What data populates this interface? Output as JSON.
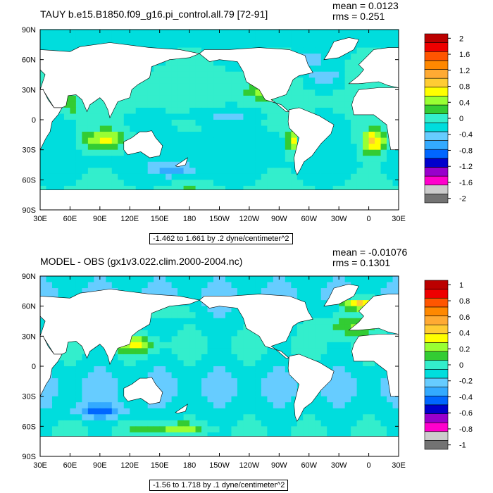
{
  "colorbar_colors": [
    "#737373",
    "#cccccc",
    "#ff00cc",
    "#9900cc",
    "#0000cc",
    "#0066ff",
    "#33aaff",
    "#66ccff",
    "#00dddd",
    "#33eecc",
    "#33cc33",
    "#99ff33",
    "#ffff00",
    "#ffcc33",
    "#ffaa33",
    "#ff8800",
    "#ff5500",
    "#ee0000",
    "#bb0000"
  ],
  "land_color": "#ffffff",
  "chart_data": [
    {
      "type": "heatmap",
      "title": "TAUY b.e15.B1850.f09_g16.pi_control.all.79 [72-91]",
      "mean_text": "mean = 0.0123",
      "rms_text": "rms = 0.251",
      "range_text": "-1.462 to 1.661 by .2 dyne/centimeter^2",
      "x_tick_labels": [
        "30E",
        "60E",
        "90E",
        "120E",
        "150E",
        "180",
        "150W",
        "120W",
        "90W",
        "60W",
        "30W",
        "0",
        "30E"
      ],
      "y_tick_labels": [
        "90N",
        "60N",
        "30N",
        "0",
        "30S",
        "60S",
        "90S"
      ],
      "colorbar_labels": [
        "2",
        "1.6",
        "1.2",
        "0.8",
        "0.4",
        "0",
        "-0.4",
        "-0.8",
        "-1.2",
        "-1.6",
        "-2"
      ],
      "value_range": [
        -1.462,
        1.661
      ],
      "contour_interval": 0.2,
      "units": "dyne/centimeter^2",
      "mean": 0.0123,
      "rms": 0.251
    },
    {
      "type": "heatmap",
      "title": "MODEL - OBS (gx1v3.022.clim.2000-2004.nc)",
      "mean_text": "mean = -0.01076",
      "rms_text": "rms = 0.1301",
      "range_text": "-1.56 to 1.718 by .1 dyne/centimeter^2",
      "x_tick_labels": [
        "30E",
        "60E",
        "90E",
        "120E",
        "150E",
        "180",
        "150W",
        "120W",
        "90W",
        "60W",
        "30W",
        "0",
        "30E"
      ],
      "y_tick_labels": [
        "90N",
        "60N",
        "30N",
        "0",
        "30S",
        "60S",
        "90S"
      ],
      "colorbar_labels": [
        "1",
        "0.8",
        "0.6",
        "0.4",
        "0.2",
        "0",
        "-0.2",
        "-0.4",
        "-0.6",
        "-0.8",
        "-1"
      ],
      "value_range": [
        -1.56,
        1.718
      ],
      "contour_interval": 0.1,
      "units": "dyne/centimeter^2",
      "mean": -0.01076,
      "rms": 0.1301
    }
  ]
}
